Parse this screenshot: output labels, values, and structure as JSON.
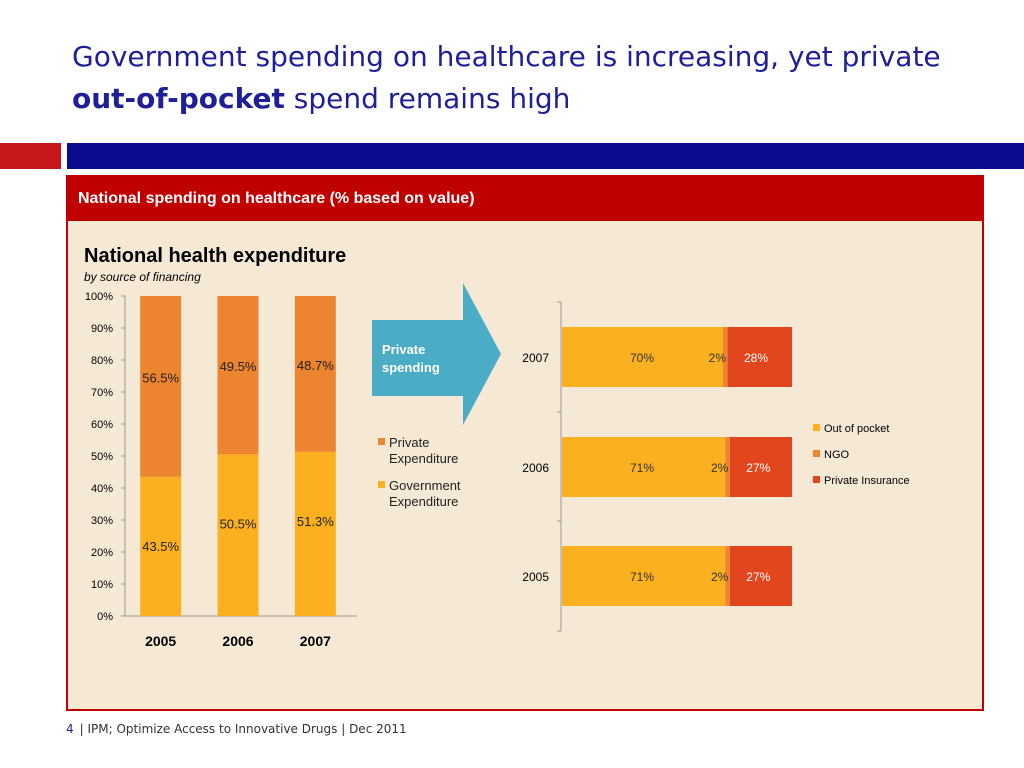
{
  "slide": {
    "title_part1": "Government spending on healthcare is increasing, yet private ",
    "title_bold": "out-of-pocket",
    "title_part2": " spend remains high",
    "panel_header": "National spending on healthcare (% based on value)",
    "arrow_label_line1": "Private",
    "arrow_label_line2": "spending",
    "page_number": "4",
    "footer_text": "| IPM; Optimize Access to Innovative Drugs | Dec 2011"
  },
  "colors": {
    "title": "#1f1f99",
    "header_red": "#c00000",
    "accent_navy": "#0b0b8e",
    "panel_bg": "#f5e9d6",
    "government": "#fbb020",
    "private": "#ec8430",
    "out_of_pocket": "#fbb020",
    "ngo": "#ec8430",
    "private_insurance": "#e2461e",
    "arrow": "#4bacc6"
  },
  "chart_data": [
    {
      "type": "bar",
      "stacked": true,
      "title": "National health expenditure",
      "subtitle": "by source of financing",
      "categories": [
        "2005",
        "2006",
        "2007"
      ],
      "series": [
        {
          "name": "Government Expenditure",
          "values": [
            43.5,
            50.5,
            51.3
          ],
          "labels": [
            "43.5%",
            "50.5%",
            "51.3%"
          ]
        },
        {
          "name": "Private Expenditure",
          "values": [
            56.5,
            49.5,
            48.7
          ],
          "labels": [
            "56.5%",
            "49.5%",
            "48.7%"
          ]
        }
      ],
      "yticks": [
        "0%",
        "10%",
        "20%",
        "30%",
        "40%",
        "50%",
        "60%",
        "70%",
        "80%",
        "90%",
        "100%"
      ],
      "ylim": [
        0,
        100
      ],
      "legend": [
        "Private Expenditure",
        "Government Expenditure"
      ],
      "legend_position": "right"
    },
    {
      "type": "bar",
      "orientation": "horizontal",
      "stacked": true,
      "categories": [
        "2007",
        "2006",
        "2005"
      ],
      "series": [
        {
          "name": "Out of pocket",
          "values": [
            70,
            71,
            71
          ],
          "labels": [
            "70%",
            "71%",
            "71%"
          ]
        },
        {
          "name": "NGO",
          "values": [
            2,
            2,
            2
          ],
          "labels": [
            "2%",
            "2%",
            "2%"
          ]
        },
        {
          "name": "Private Insurance",
          "values": [
            28,
            27,
            27
          ],
          "labels": [
            "28%",
            "27%",
            "27%"
          ]
        }
      ],
      "legend": [
        "Out of pocket",
        "NGO",
        "Private Insurance"
      ],
      "legend_position": "right"
    }
  ]
}
